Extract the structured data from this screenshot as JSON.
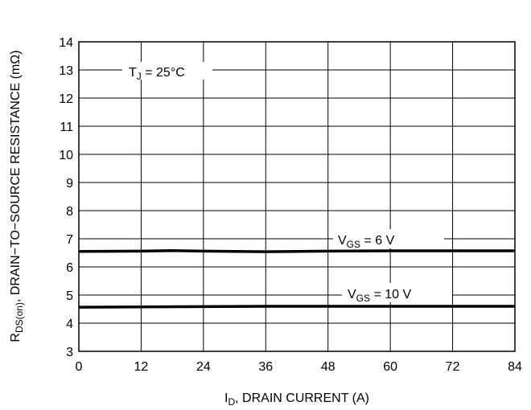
{
  "chart_data": {
    "type": "line",
    "xlabel": {
      "prefix": "I",
      "sub": "D",
      "rest": ", DRAIN CURRENT (A)"
    },
    "ylabel": {
      "prefix": "R",
      "sub": "DS(on)",
      "rest": ", DRAIN−TO−SOURCE RESISTANCE (mΩ)"
    },
    "xlim": [
      0,
      84
    ],
    "ylim": [
      3,
      14
    ],
    "xticks": [
      "0",
      "12",
      "24",
      "36",
      "48",
      "60",
      "72",
      "84"
    ],
    "yticks": [
      "3",
      "4",
      "5",
      "6",
      "7",
      "8",
      "9",
      "10",
      "11",
      "12",
      "13",
      "14"
    ],
    "grid": true,
    "annotation": {
      "prefix": "T",
      "sub": "J",
      "rest": " = 25°C"
    },
    "series": [
      {
        "name": {
          "prefix": "V",
          "sub": "GS",
          "rest": " = 6 V"
        },
        "x": [
          0,
          12,
          18,
          24,
          36,
          48,
          60,
          72,
          84
        ],
        "y": [
          6.55,
          6.56,
          6.58,
          6.56,
          6.54,
          6.56,
          6.57,
          6.57,
          6.57
        ]
      },
      {
        "name": {
          "prefix": "V",
          "sub": "GS",
          "rest": " = 10 V"
        },
        "x": [
          0,
          12,
          24,
          36,
          48,
          60,
          72,
          84
        ],
        "y": [
          4.57,
          4.58,
          4.59,
          4.6,
          4.6,
          4.6,
          4.6,
          4.6
        ]
      }
    ]
  }
}
